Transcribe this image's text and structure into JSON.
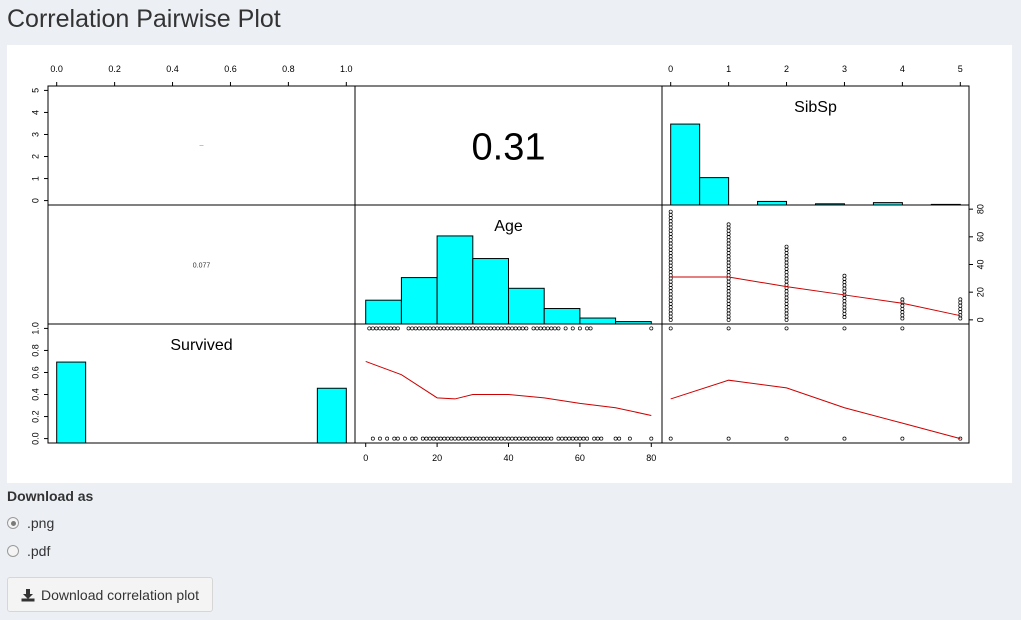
{
  "page": {
    "title": "Correlation Pairwise Plot"
  },
  "chart_data": {
    "type": "scatter",
    "variables": [
      "Survived",
      "Age",
      "SibSp"
    ],
    "correlations": [
      {
        "pair": [
          "Survived",
          "Age"
        ],
        "label": "0.077"
      },
      {
        "pair": [
          "Survived",
          "SibSp"
        ],
        "label": ""
      },
      {
        "pair": [
          "Age",
          "SibSp"
        ],
        "label": "0.31"
      }
    ],
    "axes": {
      "survived": {
        "ticks": [
          "0.0",
          "0.2",
          "0.4",
          "0.6",
          "0.8",
          "1.0"
        ],
        "range": [
          0,
          1
        ]
      },
      "age_x": {
        "ticks": [
          "0",
          "20",
          "40",
          "60",
          "80"
        ],
        "range": [
          0,
          80
        ]
      },
      "age_y": {
        "ticks": [
          "0",
          "20",
          "40",
          "60",
          "80"
        ],
        "range": [
          0,
          80
        ]
      },
      "sibsp_x": {
        "ticks": [
          "0",
          "1",
          "2",
          "3",
          "4",
          "5"
        ],
        "range": [
          0,
          5
        ]
      },
      "sibsp_y": {
        "ticks": [
          "0",
          "1",
          "2",
          "3",
          "4",
          "5"
        ],
        "range": [
          0,
          5
        ]
      }
    },
    "histograms": {
      "survived": {
        "bins": [
          [
            0,
            0.1
          ],
          [
            0.9,
            1.0
          ]
        ],
        "values": [
          0.68,
          0.46
        ]
      },
      "age": {
        "bins": [
          [
            0,
            10
          ],
          [
            10,
            20
          ],
          [
            20,
            30
          ],
          [
            30,
            40
          ],
          [
            40,
            50
          ],
          [
            50,
            60
          ],
          [
            60,
            70
          ],
          [
            70,
            80
          ]
        ],
        "values": [
          0.2,
          0.39,
          0.74,
          0.55,
          0.3,
          0.13,
          0.05,
          0.02
        ]
      },
      "sibsp": {
        "bins": [
          [
            0,
            0.5
          ],
          [
            0.5,
            1
          ],
          [
            1.5,
            2
          ],
          [
            2.5,
            3
          ],
          [
            3.5,
            4
          ],
          [
            4.5,
            5
          ]
        ],
        "values": [
          0.68,
          0.23,
          0.03,
          0.01,
          0.02,
          0.005
        ]
      }
    },
    "scatter": {
      "age_vs_survived": {
        "survived_0_ages": [
          2,
          4,
          6,
          8,
          9,
          11,
          13,
          14,
          16,
          17,
          18,
          19,
          20,
          21,
          22,
          23,
          24,
          25,
          26,
          27,
          28,
          29,
          30,
          31,
          32,
          33,
          34,
          35,
          36,
          37,
          38,
          39,
          40,
          41,
          42,
          43,
          44,
          45,
          46,
          47,
          48,
          49,
          50,
          51,
          52,
          54,
          55,
          56,
          57,
          58,
          59,
          60,
          61,
          62,
          64,
          65,
          66,
          70,
          71,
          74,
          80
        ],
        "survived_1_ages": [
          1,
          2,
          3,
          4,
          5,
          6,
          7,
          8,
          9,
          12,
          13,
          14,
          15,
          16,
          17,
          18,
          19,
          20,
          21,
          22,
          23,
          24,
          25,
          26,
          27,
          28,
          29,
          30,
          31,
          32,
          33,
          34,
          35,
          36,
          37,
          38,
          39,
          40,
          41,
          42,
          43,
          44,
          45,
          47,
          48,
          49,
          50,
          51,
          52,
          53,
          54,
          56,
          58,
          60,
          62,
          63,
          80
        ],
        "smooth": [
          [
            0,
            0.7
          ],
          [
            10,
            0.58
          ],
          [
            20,
            0.37
          ],
          [
            25,
            0.36
          ],
          [
            30,
            0.4
          ],
          [
            40,
            0.4
          ],
          [
            50,
            0.37
          ],
          [
            60,
            0.32
          ],
          [
            70,
            0.28
          ],
          [
            80,
            0.21
          ]
        ]
      },
      "sibsp_vs_survived": {
        "sibsp_levels": [
          0,
          1,
          2,
          3,
          4,
          5
        ],
        "smooth": [
          [
            0,
            0.36
          ],
          [
            1,
            0.53
          ],
          [
            2,
            0.46
          ],
          [
            3,
            0.28
          ],
          [
            4,
            0.14
          ],
          [
            5,
            0.0
          ]
        ]
      },
      "sibsp_vs_age": {
        "ranges": [
          {
            "sibsp": 0,
            "age_min": 0,
            "age_max": 80
          },
          {
            "sibsp": 1,
            "age_min": 0,
            "age_max": 70
          },
          {
            "sibsp": 2,
            "age_min": 0,
            "age_max": 53
          },
          {
            "sibsp": 3,
            "age_min": 2,
            "age_max": 33
          },
          {
            "sibsp": 4,
            "age_min": 1,
            "age_max": 17
          },
          {
            "sibsp": 5,
            "age_min": 1,
            "age_max": 16
          }
        ],
        "smooth": [
          [
            0,
            31
          ],
          [
            1,
            31
          ],
          [
            2,
            24
          ],
          [
            3,
            18
          ],
          [
            4,
            12
          ],
          [
            5,
            3
          ]
        ]
      }
    },
    "colors": {
      "histogram_fill": "#00ffff",
      "smooth_line": "#cc0000",
      "points": "#000000"
    }
  },
  "download": {
    "label": "Download as",
    "options": [
      {
        "label": ".png",
        "selected": true
      },
      {
        "label": ".pdf",
        "selected": false
      }
    ],
    "button_label": "Download correlation plot",
    "button_icon": "download-icon"
  }
}
